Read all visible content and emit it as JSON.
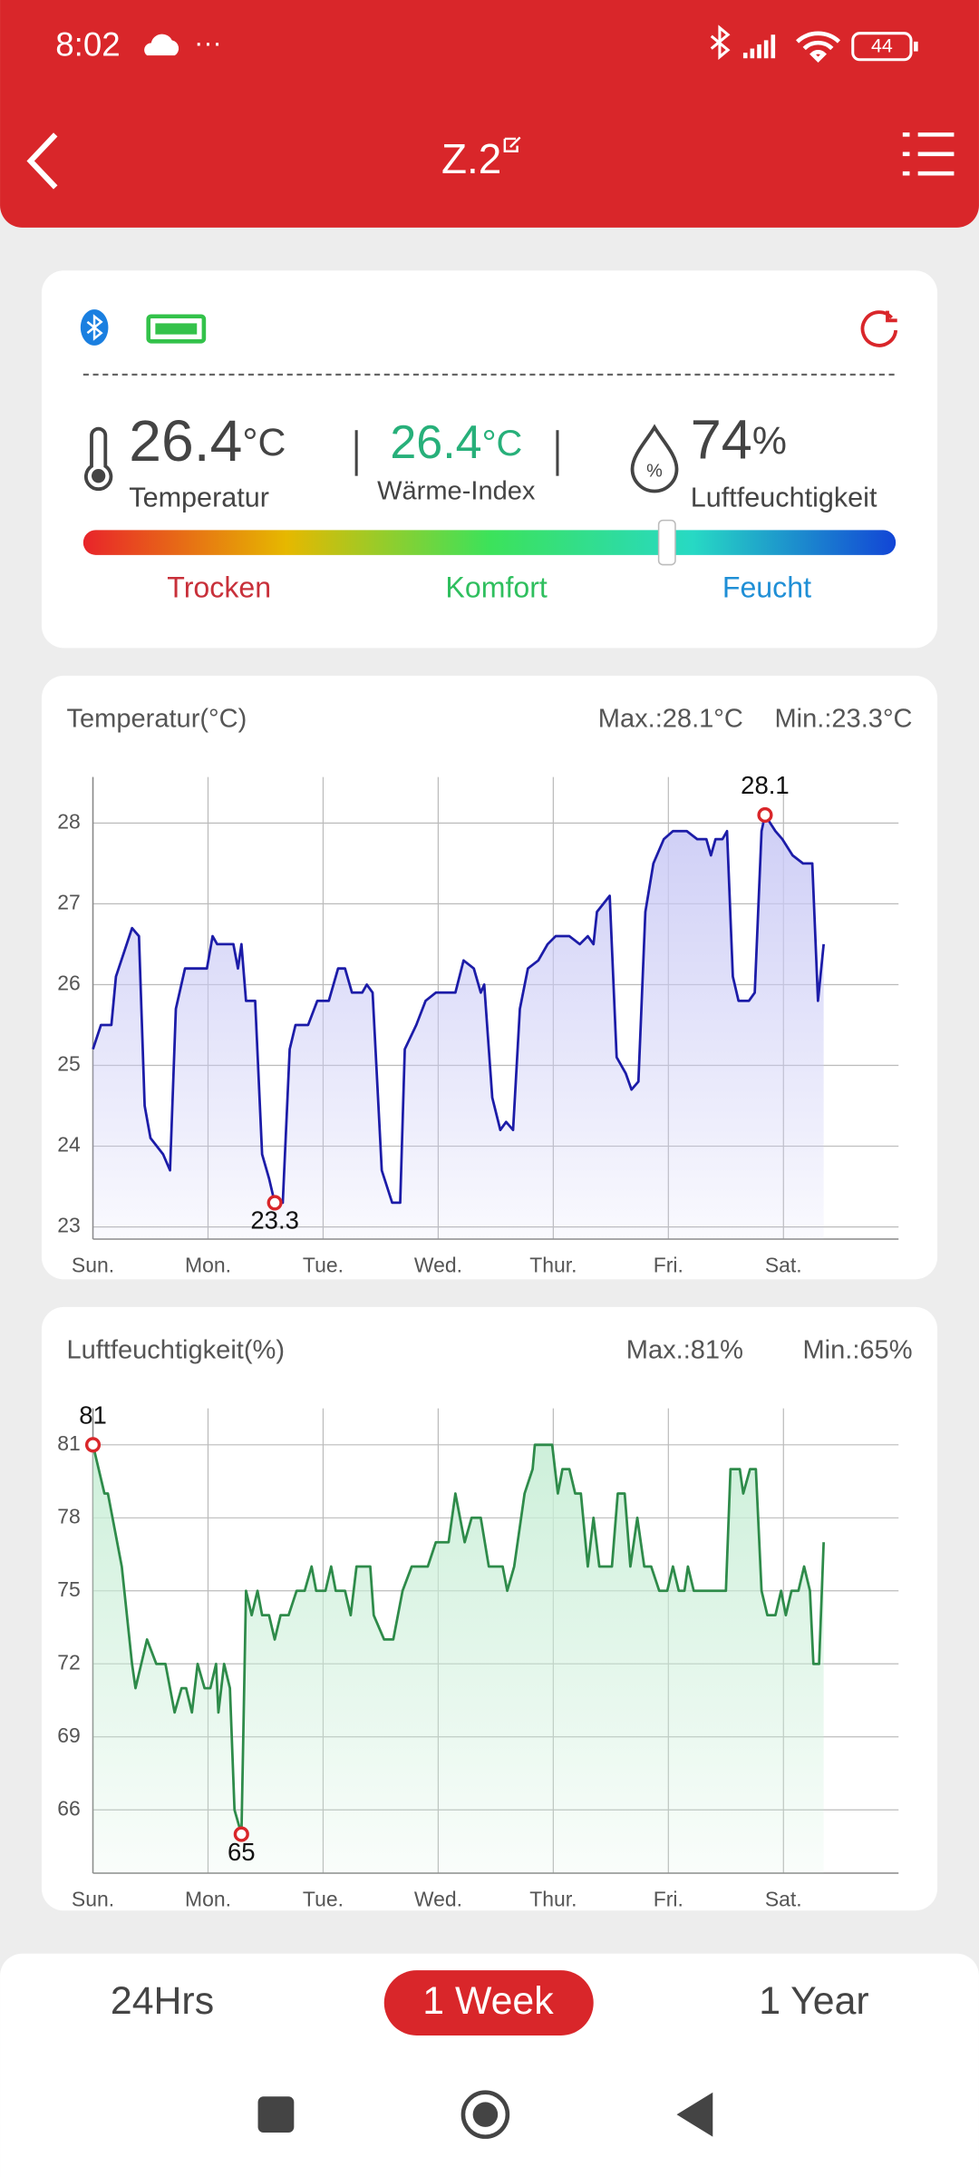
{
  "status": {
    "time": "8:02",
    "battery": "44"
  },
  "header": {
    "title": "Z.2"
  },
  "summary": {
    "temperature": {
      "value": "26.4",
      "unit": "°C",
      "label": "Temperatur"
    },
    "heat_index": {
      "value": "26.4",
      "unit": "°C",
      "label": "Wärme-Index"
    },
    "humidity": {
      "value": "74",
      "unit": "%",
      "label": "Luftfeuchtigkeit"
    },
    "scale": [
      "Trocken",
      "Komfort",
      "Feucht"
    ]
  },
  "chart_data": [
    {
      "type": "line",
      "title": "Temperatur(°C)",
      "max_label": "Max.:28.1°C",
      "min_label": "Min.:23.3°C",
      "color": "#1c1ca8",
      "fill": "#c9c9f5",
      "xlim": [
        0,
        7
      ],
      "xticks": [
        {
          "value": 0,
          "label": "Sun."
        },
        {
          "value": 1,
          "label": "Mon."
        },
        {
          "value": 2,
          "label": "Tue."
        },
        {
          "value": 3,
          "label": "Wed."
        },
        {
          "value": 4,
          "label": "Thur."
        },
        {
          "value": 5,
          "label": "Fri."
        },
        {
          "value": 6,
          "label": "Sat."
        }
      ],
      "ylim": [
        22.85,
        28.57
      ],
      "yticks": [
        23,
        24,
        25,
        26,
        27,
        28
      ],
      "grid": true,
      "x": [
        0,
        0.07,
        0.16,
        0.2,
        0.34,
        0.4,
        0.45,
        0.5,
        0.61,
        0.67,
        0.72,
        0.8,
        0.99,
        1.04,
        1.08,
        1.22,
        1.26,
        1.29,
        1.33,
        1.41,
        1.47,
        1.53,
        1.58,
        1.65,
        1.71,
        1.76,
        1.87,
        1.95,
        2.05,
        2.13,
        2.19,
        2.25,
        2.34,
        2.38,
        2.43,
        2.51,
        2.6,
        2.67,
        2.71,
        2.81,
        2.89,
        2.98,
        3.15,
        3.22,
        3.31,
        3.37,
        3.4,
        3.47,
        3.54,
        3.59,
        3.65,
        3.71,
        3.78,
        3.87,
        3.95,
        4.02,
        4.14,
        4.23,
        4.3,
        4.35,
        4.38,
        4.49,
        4.55,
        4.63,
        4.68,
        4.74,
        4.8,
        4.87,
        4.96,
        5.04,
        5.16,
        5.25,
        5.33,
        5.37,
        5.41,
        5.47,
        5.51,
        5.56,
        5.61,
        5.7,
        5.75,
        5.81,
        5.84,
        5.93,
        5.99,
        6.08,
        6.17,
        6.25,
        6.3,
        6.35
      ],
      "values": [
        25.2,
        25.5,
        25.5,
        26.1,
        26.7,
        26.6,
        24.5,
        24.1,
        23.9,
        23.7,
        25.7,
        26.2,
        26.2,
        26.6,
        26.5,
        26.5,
        26.2,
        26.5,
        25.8,
        25.8,
        23.9,
        23.6,
        23.3,
        23.3,
        25.2,
        25.5,
        25.5,
        25.8,
        25.8,
        26.2,
        26.2,
        25.9,
        25.9,
        26.0,
        25.9,
        23.7,
        23.3,
        23.3,
        25.2,
        25.5,
        25.8,
        25.9,
        25.9,
        26.3,
        26.2,
        25.9,
        26.0,
        24.6,
        24.2,
        24.3,
        24.2,
        25.7,
        26.2,
        26.3,
        26.5,
        26.6,
        26.6,
        26.5,
        26.6,
        26.5,
        26.9,
        27.1,
        25.1,
        24.9,
        24.7,
        24.8,
        26.9,
        27.5,
        27.8,
        27.9,
        27.9,
        27.8,
        27.8,
        27.6,
        27.8,
        27.8,
        27.9,
        26.1,
        25.8,
        25.8,
        25.9,
        27.9,
        28.1,
        27.9,
        27.8,
        27.6,
        27.5,
        27.5,
        25.8,
        26.5
      ],
      "annotations": [
        {
          "x": 5.84,
          "y": 28.1,
          "position": "above"
        },
        {
          "x": 1.58,
          "y": 23.3,
          "position": "below"
        }
      ]
    },
    {
      "type": "line",
      "title": "Luftfeuchtigkeit(%)",
      "max_label": "Max.:81%",
      "min_label": "Min.:65%",
      "color": "#2e8b4a",
      "fill": "#c8eed6",
      "xlim": [
        0,
        7
      ],
      "xticks": [
        {
          "value": 0,
          "label": "Sun."
        },
        {
          "value": 1,
          "label": "Mon."
        },
        {
          "value": 2,
          "label": "Tue."
        },
        {
          "value": 3,
          "label": "Wed."
        },
        {
          "value": 4,
          "label": "Thur."
        },
        {
          "value": 5,
          "label": "Fri."
        },
        {
          "value": 6,
          "label": "Sat."
        }
      ],
      "ylim": [
        63.4,
        82.5
      ],
      "yticks": [
        66,
        69,
        72,
        75,
        78,
        81
      ],
      "grid": true,
      "x": [
        0,
        0.1,
        0.13,
        0.25,
        0.34,
        0.37,
        0.47,
        0.55,
        0.63,
        0.71,
        0.77,
        0.81,
        0.86,
        0.91,
        0.97,
        1.02,
        1.07,
        1.09,
        1.14,
        1.19,
        1.23,
        1.29,
        1.33,
        1.38,
        1.43,
        1.47,
        1.53,
        1.58,
        1.63,
        1.7,
        1.77,
        1.84,
        1.9,
        1.94,
        2.02,
        2.07,
        2.11,
        2.19,
        2.24,
        2.29,
        2.41,
        2.44,
        2.53,
        2.61,
        2.69,
        2.77,
        2.91,
        2.98,
        3.09,
        3.15,
        3.23,
        3.29,
        3.37,
        3.44,
        3.56,
        3.6,
        3.66,
        3.75,
        3.82,
        3.84,
        3.99,
        4.04,
        4.08,
        4.14,
        4.19,
        4.24,
        4.3,
        4.35,
        4.4,
        4.51,
        4.56,
        4.62,
        4.67,
        4.73,
        4.79,
        4.85,
        4.92,
        4.99,
        5.04,
        5.09,
        5.14,
        5.17,
        5.22,
        5.5,
        5.54,
        5.62,
        5.65,
        5.71,
        5.76,
        5.81,
        5.86,
        5.93,
        5.98,
        6.02,
        6.07,
        6.13,
        6.18,
        6.23,
        6.26,
        6.31,
        6.35
      ],
      "values": [
        81,
        79,
        79,
        76,
        72,
        71,
        73,
        72,
        72,
        70,
        71,
        71,
        70,
        72,
        71,
        71,
        72,
        70,
        72,
        71,
        66,
        65,
        75,
        74,
        75,
        74,
        74,
        73,
        74,
        74,
        75,
        75,
        76,
        75,
        75,
        76,
        75,
        75,
        74,
        76,
        76,
        74,
        73,
        73,
        75,
        76,
        76,
        77,
        77,
        79,
        77,
        78,
        78,
        76,
        76,
        75,
        76,
        79,
        80,
        81,
        81,
        79,
        80,
        80,
        79,
        79,
        76,
        78,
        76,
        76,
        79,
        79,
        76,
        78,
        76,
        76,
        75,
        75,
        76,
        75,
        75,
        76,
        75,
        75,
        80,
        80,
        79,
        80,
        80,
        75,
        74,
        74,
        75,
        74,
        75,
        75,
        76,
        75,
        72,
        72,
        77
      ],
      "annotations": [
        {
          "x": 0,
          "y": 81,
          "position": "above"
        },
        {
          "x": 1.29,
          "y": 65,
          "position": "below"
        }
      ]
    }
  ],
  "tabs": [
    "24Hrs",
    "1 Week",
    "1 Year"
  ]
}
